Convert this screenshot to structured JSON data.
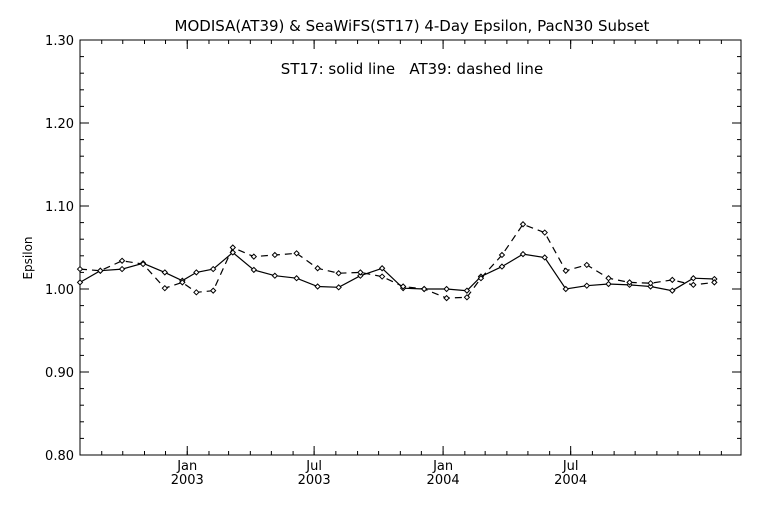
{
  "chart_data": {
    "type": "line",
    "title": "MODISA(AT39) & SeaWiFS(ST17) 4-Day Epsilon, PacN30 Subset",
    "annotation": "ST17: solid line   AT39: dashed line",
    "xlabel": "",
    "ylabel": "Epsilon",
    "ylim": [
      0.8,
      1.3
    ],
    "xlim": [
      "2002-08-01",
      "2005-03-01"
    ],
    "grid": false,
    "y_ticks": [
      "0.80",
      "0.90",
      "1.00",
      "1.10",
      "1.20",
      "1.30"
    ],
    "x_ticks": [
      {
        "date": "2003-01-01",
        "month": "Jan",
        "year": "2003"
      },
      {
        "date": "2003-07-01",
        "month": "Jul",
        "year": "2003"
      },
      {
        "date": "2004-01-01",
        "month": "Jan",
        "year": "2004"
      },
      {
        "date": "2004-07-01",
        "month": "Jul",
        "year": "2004"
      }
    ],
    "x": [
      "2002-08-01",
      "2002-08-30",
      "2002-09-30",
      "2002-10-30",
      "2002-11-30",
      "2002-12-25",
      "2003-01-14",
      "2003-02-07",
      "2003-03-07",
      "2003-04-06",
      "2003-05-06",
      "2003-06-06",
      "2003-07-06",
      "2003-08-05",
      "2003-09-05",
      "2003-10-06",
      "2003-11-05",
      "2003-12-05",
      "2004-01-06",
      "2004-02-04",
      "2004-02-24",
      "2004-03-25",
      "2004-04-24",
      "2004-05-25",
      "2004-06-24",
      "2004-07-24",
      "2004-08-24",
      "2004-09-23",
      "2004-10-23",
      "2004-11-23",
      "2004-12-23",
      "2005-01-22"
    ],
    "series": [
      {
        "name": "ST17",
        "style": "solid",
        "color": "#000000",
        "values": [
          1.008,
          1.022,
          1.024,
          1.031,
          1.02,
          1.01,
          1.02,
          1.024,
          1.044,
          1.023,
          1.016,
          1.013,
          1.003,
          1.002,
          1.016,
          1.025,
          1.001,
          1.0,
          1.0,
          0.998,
          1.015,
          1.027,
          1.042,
          1.038,
          1.0,
          1.004,
          1.006,
          1.005,
          1.003,
          0.998,
          1.013,
          1.012
        ]
      },
      {
        "name": "AT39",
        "style": "dashed",
        "color": "#000000",
        "values": [
          1.024,
          1.022,
          1.034,
          1.03,
          1.001,
          1.008,
          0.996,
          0.998,
          1.05,
          1.039,
          1.041,
          1.043,
          1.025,
          1.019,
          1.02,
          1.015,
          1.003,
          1.0,
          0.989,
          0.99,
          1.013,
          1.041,
          1.078,
          1.068,
          1.022,
          1.029,
          1.013,
          1.008,
          1.007,
          1.011,
          1.005,
          1.008
        ]
      }
    ]
  }
}
